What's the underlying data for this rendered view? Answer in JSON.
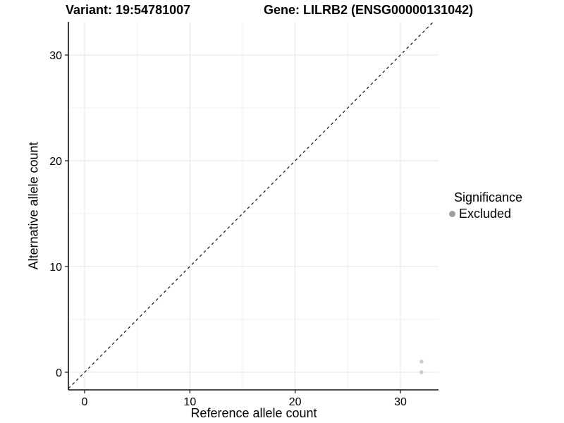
{
  "page": {
    "background": "#ffffff",
    "text_color": "#000000"
  },
  "chart_data": {
    "type": "scatter",
    "title_left": "Variant: 19:54781007",
    "title_right": "Gene: LILRB2 (ENSG00000131042)",
    "xlabel": "Reference allele count",
    "ylabel": "Alternative allele count",
    "x_ticks": [
      0,
      10,
      20,
      30
    ],
    "y_ticks": [
      0,
      10,
      20,
      30
    ],
    "xlim": [
      -1.5,
      33.6
    ],
    "ylim": [
      -1.7,
      33.1
    ],
    "grid": {
      "major": true,
      "minor": true,
      "major_color": "#e6e6e6",
      "minor_color": "#f2f2f2"
    },
    "axis_color": "#111111",
    "reference_line": {
      "type": "identity",
      "style": "dashed",
      "color": "#111111"
    },
    "legend": {
      "title": "Significance",
      "position": "right",
      "entries": [
        {
          "label": "Excluded",
          "color": "#9e9e9e"
        }
      ]
    },
    "series": [
      {
        "name": "Excluded",
        "color": "#cccccc",
        "points": [
          [
            32,
            0
          ],
          [
            32,
            1
          ]
        ]
      }
    ]
  }
}
